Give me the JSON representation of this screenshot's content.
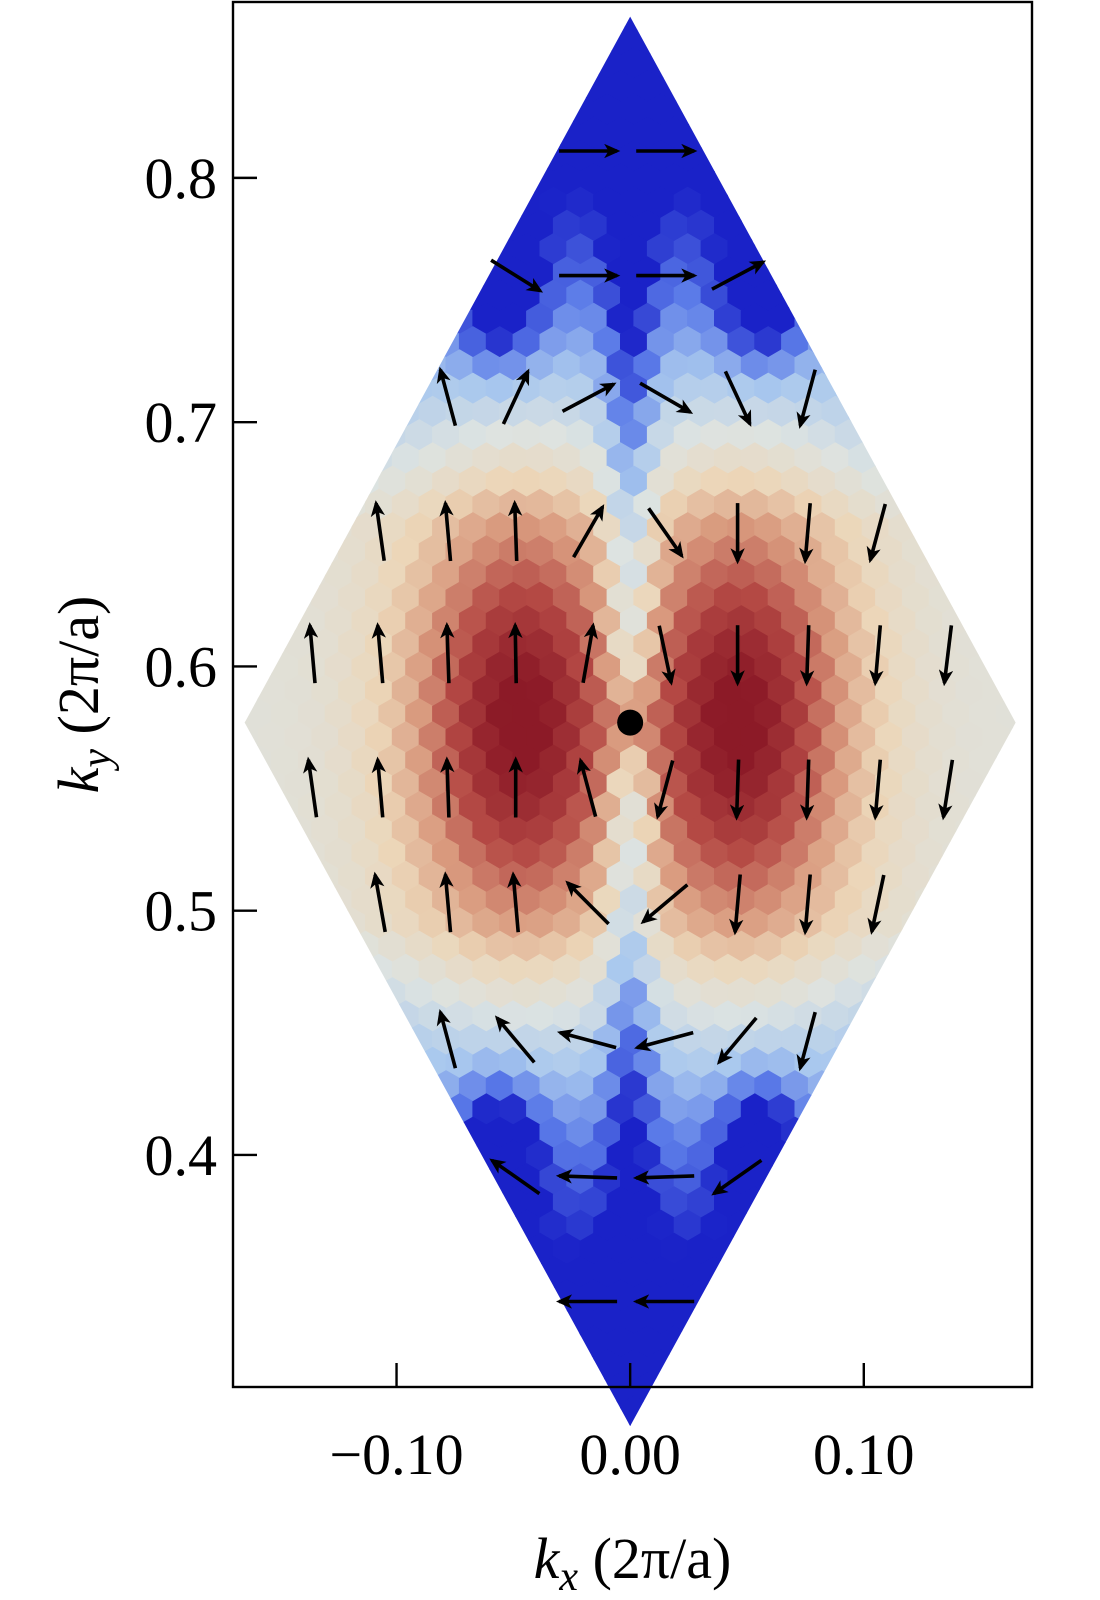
{
  "chart_data": {
    "type": "heatmap",
    "xlabel": {
      "var": "k",
      "sub": "x",
      "unit": " (2π/a)"
    },
    "ylabel": {
      "var": "k",
      "sub": "y",
      "unit": " (2π/a)"
    },
    "xlim": [
      -0.17,
      0.172
    ],
    "ylim": [
      0.305,
      0.872
    ],
    "x_ticks": [
      -0.1,
      0.0,
      0.1
    ],
    "x_tick_labels": [
      "−0.10",
      "0.00",
      "0.10"
    ],
    "y_ticks": [
      0.4,
      0.5,
      0.6,
      0.7,
      0.8
    ],
    "y_tick_labels": [
      "0.4",
      "0.5",
      "0.6",
      "0.7",
      "0.8"
    ],
    "grid": false,
    "region": {
      "shape": "rhombus",
      "vertices": [
        [
          0.0,
          0.866
        ],
        [
          0.165,
          0.577
        ],
        [
          0.0,
          0.289
        ],
        [
          -0.165,
          0.577
        ]
      ]
    },
    "colormap": [
      "#1a22c8",
      "#5a7ae8",
      "#a9c8ee",
      "#dde3e1",
      "#ecd6b8",
      "#d99a7e",
      "#b54a45",
      "#8c1a27"
    ],
    "center_point": [
      0.0,
      0.577
    ],
    "vector_field": {
      "columns": [
        -0.136,
        -0.107,
        -0.078,
        -0.049,
        -0.018,
        0.015,
        0.046,
        0.076,
        0.106,
        0.136
      ],
      "rows": [
        {
          "y": 0.811,
          "angles": [
            null,
            null,
            null,
            null,
            0,
            0,
            null,
            null,
            null,
            null
          ]
        },
        {
          "y": 0.76,
          "angles": [
            null,
            null,
            null,
            -32,
            0,
            0,
            28,
            null,
            null,
            null
          ]
        },
        {
          "y": 0.71,
          "angles": [
            null,
            null,
            105,
            65,
            28,
            -30,
            -65,
            -105,
            null,
            null
          ]
        },
        {
          "y": 0.655,
          "angles": [
            null,
            98,
            95,
            92,
            60,
            -55,
            -90,
            -95,
            -105,
            null
          ]
        },
        {
          "y": 0.605,
          "angles": [
            95,
            95,
            92,
            91,
            80,
            -78,
            -90,
            -92,
            -95,
            -97
          ]
        },
        {
          "y": 0.55,
          "angles": [
            98,
            95,
            92,
            90,
            105,
            -105,
            -92,
            -92,
            -95,
            -99
          ]
        },
        {
          "y": 0.503,
          "angles": [
            null,
            100,
            95,
            95,
            135,
            -140,
            -95,
            -95,
            -102,
            null
          ]
        },
        {
          "y": 0.447,
          "angles": [
            null,
            null,
            105,
            130,
            165,
            -165,
            -130,
            -105,
            null,
            null
          ]
        },
        {
          "y": 0.391,
          "angles": [
            null,
            null,
            null,
            145,
            178,
            182,
            215,
            null,
            null,
            null
          ]
        },
        {
          "y": 0.34,
          "angles": [
            null,
            null,
            null,
            null,
            180,
            180,
            null,
            null,
            null,
            null
          ]
        }
      ]
    }
  }
}
